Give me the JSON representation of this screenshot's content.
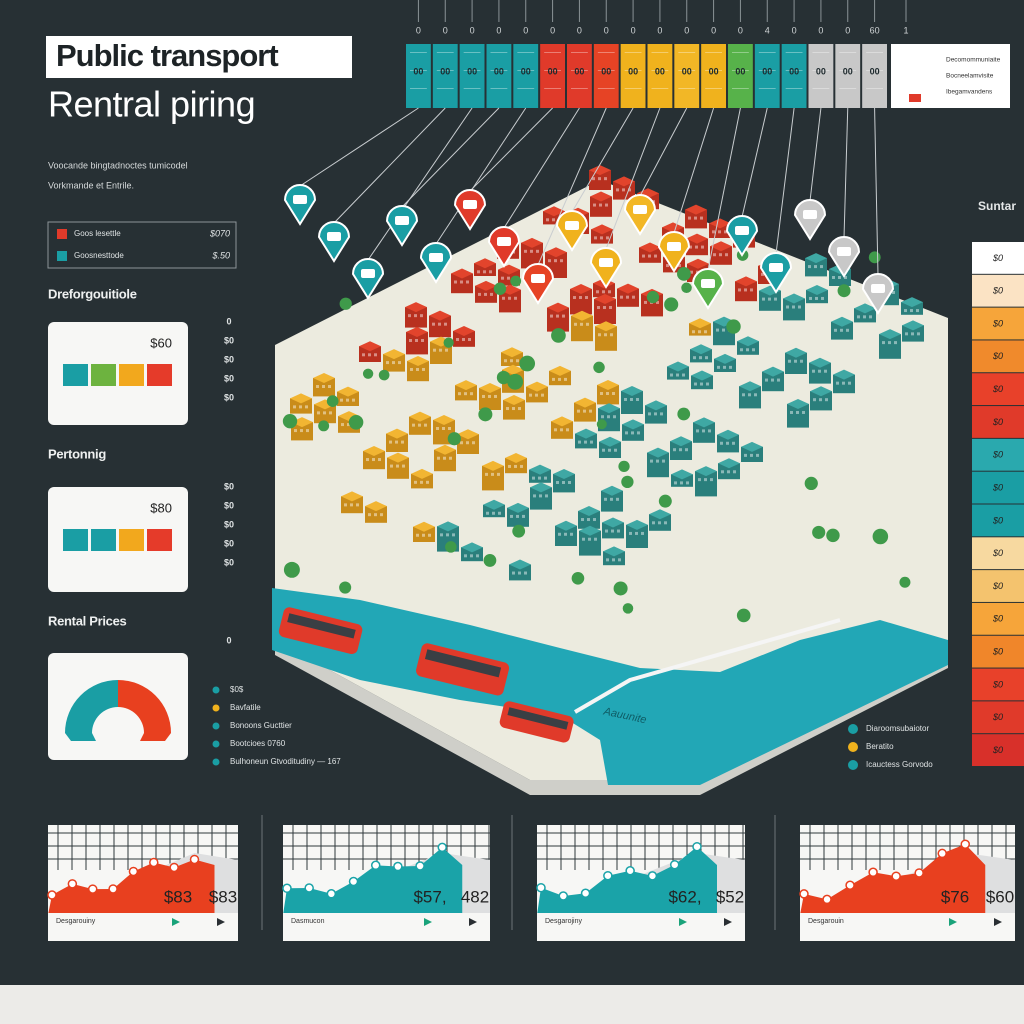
{
  "header": {
    "title": "Public transport",
    "subtitle": "Rentral piring"
  },
  "top_strip": {
    "columns": [
      {
        "head": "0",
        "label": "00",
        "color": "#1a9ea4"
      },
      {
        "head": "0",
        "label": "00",
        "color": "#1a9ea4"
      },
      {
        "head": "0",
        "label": "00",
        "color": "#1a9ea4"
      },
      {
        "head": "0",
        "label": "00",
        "color": "#1a9ea4"
      },
      {
        "head": "0",
        "label": "00",
        "color": "#1a9ea4"
      },
      {
        "head": "0",
        "label": "00",
        "color": "#e03a2a"
      },
      {
        "head": "0",
        "label": "00",
        "color": "#e03a2a"
      },
      {
        "head": "0",
        "label": "00",
        "color": "#e64325"
      },
      {
        "head": "0",
        "label": "00",
        "color": "#f0b21d"
      },
      {
        "head": "0",
        "label": "00",
        "color": "#f0b21d"
      },
      {
        "head": "0",
        "label": "00",
        "color": "#f2b726"
      },
      {
        "head": "0",
        "label": "00",
        "color": "#f0b21d"
      },
      {
        "head": "0",
        "label": "00",
        "color": "#57b24a"
      },
      {
        "head": "4",
        "label": "00",
        "color": "#1a9ea4"
      },
      {
        "head": "0",
        "label": "00",
        "color": "#1a9ea4"
      },
      {
        "head": "0",
        "label": "00",
        "color": "#c8c8c8"
      },
      {
        "head": "0",
        "label": "00",
        "color": "#c8c8c8"
      },
      {
        "head": "60",
        "label": "00",
        "color": "#c8c8c8"
      }
    ],
    "notes": {
      "head": "1",
      "lines": [
        "Decomommuniaite",
        "Bocneelamvisite",
        "Ibegamvandens"
      ]
    }
  },
  "left": {
    "intro": [
      "Voocande bingtadnoctes tumicodel",
      "Vorkmande et Entrile."
    ],
    "key": [
      {
        "label": "Goos lesettle",
        "value": "$070",
        "color": "#e03a2a"
      },
      {
        "label": "Goosnesttode",
        "value": "$.50",
        "color": "#1a9ea4"
      }
    ],
    "sections": [
      {
        "title": "Dreforgouitiole",
        "value": "$60",
        "swatches": [
          "#1a9ea4",
          "#6db33f",
          "#f2a81d",
          "#e53b2a"
        ],
        "ticks": [
          "0",
          "$0",
          "$0",
          "$0",
          "$0"
        ]
      },
      {
        "title": "Pertonnig",
        "value": "$80",
        "swatches": [
          "#1a9ea4",
          "#1a9ea4",
          "#f2a81d",
          "#e53b2a"
        ],
        "ticks": [
          "$0",
          "$0",
          "$0",
          "$0",
          "$0"
        ]
      },
      {
        "title": "Rental Prices",
        "ticks": [
          "0"
        ]
      }
    ],
    "legend": [
      {
        "label": "$0$",
        "color": "#1a9ea4"
      },
      {
        "label": "Bavfatile",
        "color": "#f0b21d"
      },
      {
        "label": "Bonoons Gucttier",
        "color": "#1a9ea4"
      },
      {
        "label": "Bootcioes 0760",
        "color": "#1a9ea4"
      },
      {
        "label": "Bulhoneun Gtvoditudiny — 167",
        "color": "#1a9ea4"
      }
    ]
  },
  "map": {
    "river_label": "Aauunite"
  },
  "right": {
    "title": "Suntar",
    "items": [
      {
        "label": "$0",
        "color": "#ffffff"
      },
      {
        "label": "$0",
        "color": "#fbe3c4"
      },
      {
        "label": "$0",
        "color": "#f6a53a"
      },
      {
        "label": "$0",
        "color": "#f08a2c"
      },
      {
        "label": "$0",
        "color": "#e8412a"
      },
      {
        "label": "$0",
        "color": "#e03a2a"
      },
      {
        "label": "$0",
        "color": "#2aa9ae"
      },
      {
        "label": "$0",
        "color": "#1a9ea4"
      },
      {
        "label": "$0",
        "color": "#1a9ea4"
      },
      {
        "label": "$0",
        "color": "#f7d9a0"
      },
      {
        "label": "$0",
        "color": "#f4c36e"
      },
      {
        "label": "$0",
        "color": "#f6a53a"
      },
      {
        "label": "$0",
        "color": "#f0862a"
      },
      {
        "label": "$0",
        "color": "#e8412a"
      },
      {
        "label": "$0",
        "color": "#e03a2a"
      },
      {
        "label": "$0",
        "color": "#d8302a"
      }
    ],
    "legend": [
      {
        "label": "Diaroomsubaiotor",
        "color": "#1a9ea4"
      },
      {
        "label": "Beratito",
        "color": "#f0b21d"
      },
      {
        "label": "Icauctess Gorvodo",
        "color": "#1a9ea4"
      }
    ]
  },
  "bottom": {
    "charts": [
      {
        "label": "Desgarouiny",
        "values": [
          "$83",
          "$83"
        ],
        "color": "#e8401f"
      },
      {
        "label": "Dasmucon",
        "values": [
          "$57,",
          "482"
        ],
        "color": "#1aa3a8"
      },
      {
        "label": "Desgarojiny",
        "values": [
          "$62,",
          "$52"
        ],
        "color": "#1aa3a8"
      },
      {
        "label": "Desgarouin",
        "values": [
          "$76",
          "$60"
        ],
        "color": "#e8401f"
      }
    ]
  }
}
